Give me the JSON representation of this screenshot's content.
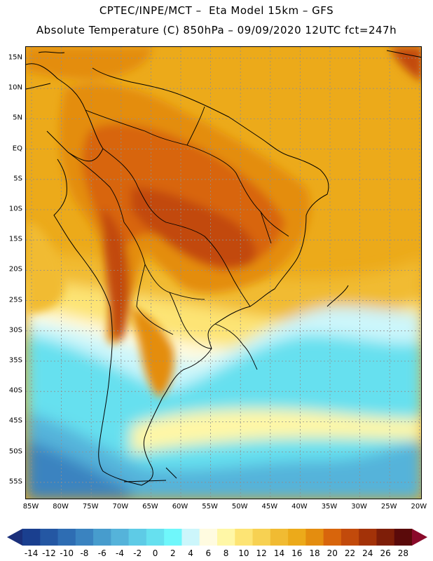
{
  "header": {
    "line1": "CPTEC/INPE/MCT –  Eta Model 15km – GFS",
    "line2": "Absolute Temperature (C) 850hPa – 09/09/2020 12UTC fct=247h"
  },
  "map": {
    "lat_labels": [
      "15N",
      "10N",
      "5N",
      "EQ",
      "5S",
      "10S",
      "15S",
      "20S",
      "25S",
      "30S",
      "35S",
      "40S",
      "45S",
      "50S",
      "55S"
    ],
    "lon_labels": [
      "85W",
      "80W",
      "75W",
      "70W",
      "65W",
      "60W",
      "55W",
      "50W",
      "45W",
      "40W",
      "35W",
      "30W",
      "25W",
      "20W"
    ]
  },
  "colorbar": {
    "labels": [
      "-14",
      "-12",
      "-10",
      "-8",
      "-6",
      "-4",
      "-2",
      "0",
      "2",
      "4",
      "6",
      "8",
      "10",
      "12",
      "14",
      "16",
      "18",
      "20",
      "22",
      "24",
      "26",
      "28"
    ],
    "colors": [
      "#1a3f8f",
      "#2457a3",
      "#2e6db3",
      "#3a83c0",
      "#479ccd",
      "#55b3da",
      "#5ecbe6",
      "#66e0ef",
      "#6ff7fb",
      "#ccf6fb",
      "#fffbe0",
      "#fff7a6",
      "#fde474",
      "#f7d152",
      "#f1bb32",
      "#ecaa1a",
      "#e48d0f",
      "#d8650c",
      "#c24a0b",
      "#a33208",
      "#7e1e08",
      "#5a0a0a"
    ],
    "low_arrow_color": "#1a2f7a",
    "high_arrow_color": "#8a0a2a"
  }
}
